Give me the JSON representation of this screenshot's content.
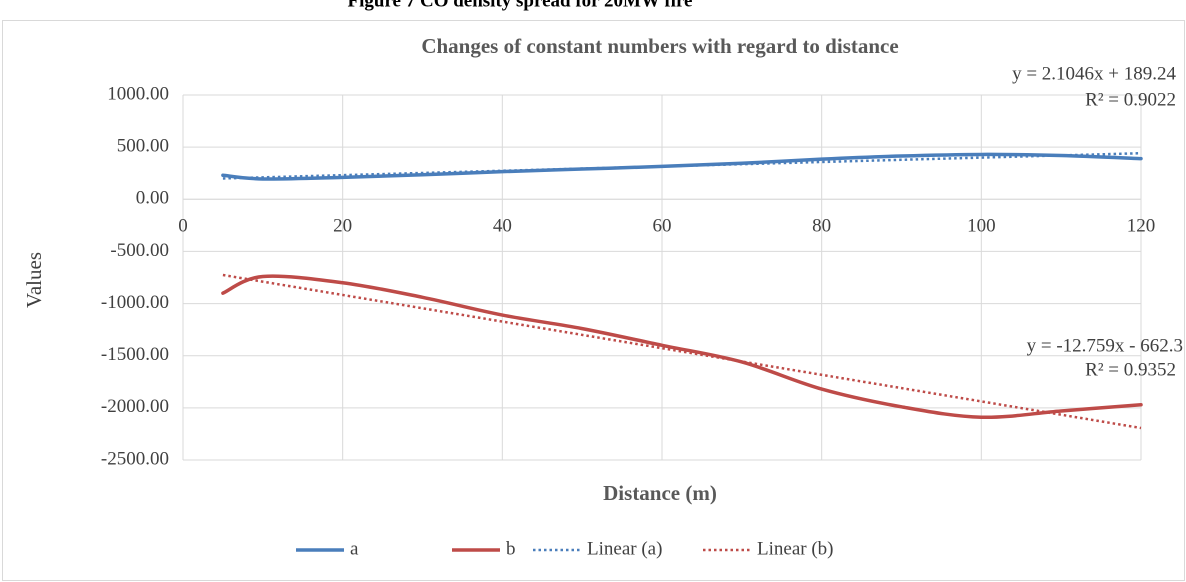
{
  "caption": "Figure 7 CO density spread for 20MW fire",
  "chart_data": {
    "type": "line",
    "title": "Changes of constant numbers with regard to distance",
    "x_label": "Distance (m)",
    "y_label": "Values",
    "x": [
      5,
      10,
      20,
      30,
      40,
      50,
      60,
      70,
      80,
      90,
      100,
      110,
      120
    ],
    "series": [
      {
        "name": "a",
        "color": "#4a7ebb",
        "values": [
          230,
          195,
          210,
          235,
          265,
          290,
          315,
          345,
          385,
          415,
          430,
          420,
          390
        ]
      },
      {
        "name": "b",
        "color": "#be4b48",
        "values": [
          -900,
          -740,
          -800,
          -940,
          -1110,
          -1240,
          -1400,
          -1560,
          -1820,
          -1990,
          -2090,
          -2030,
          -1970
        ]
      },
      {
        "name": "Linear (a)",
        "color": "#4a7ebb",
        "dashed": true,
        "x": [
          5,
          120
        ],
        "values": [
          199.8,
          441.8
        ]
      },
      {
        "name": "Linear (b)",
        "color": "#be4b48",
        "dashed": true,
        "x": [
          5,
          120
        ],
        "values": [
          -726.1,
          -2193.4
        ]
      }
    ],
    "annotations": [
      "y = 2.1046x + 189.24",
      "R² = 0.9022",
      "y = -12.759x - 662.3",
      "R² = 0.9352"
    ],
    "xlim": [
      0,
      120
    ],
    "xticks": [
      0,
      20,
      40,
      60,
      80,
      100,
      120
    ],
    "ylim": [
      -2500,
      1000
    ],
    "yticks": [
      {
        "value": -2500,
        "label": "-2500.00"
      },
      {
        "value": -2000,
        "label": "-2000.00"
      },
      {
        "value": -1500,
        "label": "-1500.00"
      },
      {
        "value": -1000,
        "label": "-1000.00"
      },
      {
        "value": -500,
        "label": "-500.00"
      },
      {
        "value": 0,
        "label": "0.00"
      },
      {
        "value": 500,
        "label": "500.00"
      },
      {
        "value": 1000,
        "label": "1000.00"
      }
    ],
    "grid": true,
    "legend": "bottom"
  }
}
